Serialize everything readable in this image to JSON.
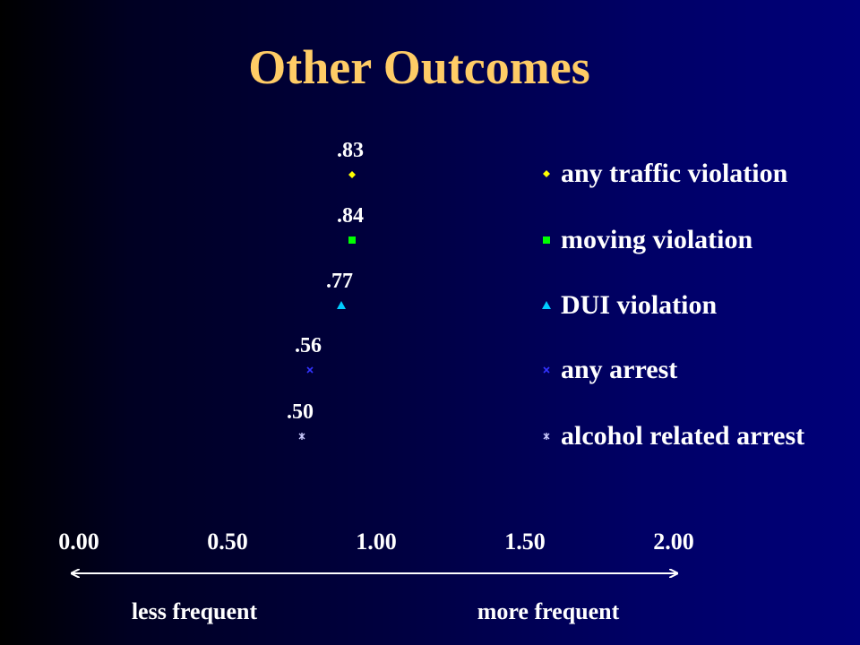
{
  "title": "Other Outcomes",
  "chart_data": {
    "type": "scatter",
    "title": "Other Outcomes",
    "xlim": [
      0,
      2
    ],
    "x_ticks": [
      "0.00",
      "0.50",
      "1.00",
      "1.50",
      "2.00"
    ],
    "axis_notes": {
      "left": "less frequent",
      "right": "more frequent"
    },
    "series": [
      {
        "name": "any traffic violation",
        "value": 0.83,
        "label": ".83",
        "marker": "diamond",
        "color": "#ffff00"
      },
      {
        "name": "moving violation",
        "value": 0.84,
        "label": ".84",
        "marker": "square",
        "color": "#00ff00"
      },
      {
        "name": "DUI violation",
        "value": 0.77,
        "label": ".77",
        "marker": "triangle",
        "color": "#00ccff"
      },
      {
        "name": "any arrest",
        "value": 0.56,
        "label": ".56",
        "marker": "x",
        "color": "#3333ff"
      },
      {
        "name": "alcohol related arrest",
        "value": 0.5,
        "label": ".50",
        "marker": "asterisk",
        "color": "#ccccff"
      }
    ],
    "label_color": "#ffffff",
    "title_color": "#ffcc66"
  }
}
